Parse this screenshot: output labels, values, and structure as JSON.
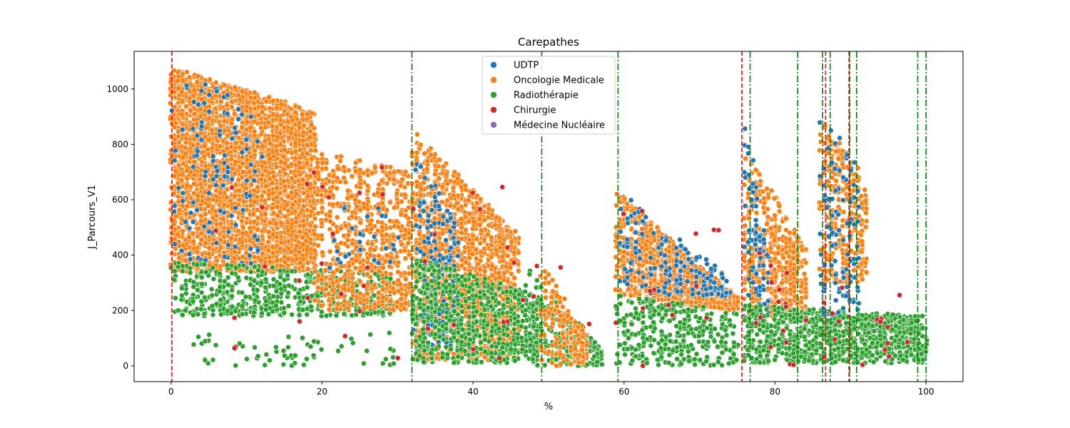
{
  "chart_data": {
    "type": "scatter",
    "title": "Carepathes",
    "xlabel": "%",
    "ylabel": "J_Parcours_V1",
    "xlim": [
      -4.9,
      104.9
    ],
    "ylim": [
      -57,
      1136
    ],
    "xticks": [
      0,
      20,
      40,
      60,
      80,
      100
    ],
    "yticks": [
      0,
      200,
      400,
      600,
      800,
      1000
    ],
    "grid": false,
    "legend_position": "top-center",
    "series": [
      {
        "name": "UDTP",
        "color": "#1f77b4"
      },
      {
        "name": "Oncologie Medicale",
        "color": "#ff7f0e"
      },
      {
        "name": "Radiothérapie",
        "color": "#2ca02c"
      },
      {
        "name": "Chirurgie",
        "color": "#d62728"
      },
      {
        "name": "Médecine Nucléaire",
        "color": "#9467bd"
      }
    ],
    "vlines_red_dashed": [
      0.1,
      75.6,
      86.7,
      89.8
    ],
    "vlines_green_dashdot": [
      31.9,
      49.1,
      59.2,
      76.7,
      83.0,
      86.3,
      87.3,
      89.9,
      90.8,
      98.9,
      100.0
    ],
    "clusters": [
      {
        "series": "Oncologie Medicale",
        "x": [
          0,
          19
        ],
        "y_top": [
          1080,
          920
        ],
        "y_bot": [
          340,
          340
        ],
        "n": 3600
      },
      {
        "series": "UDTP",
        "x": [
          0,
          12
        ],
        "y_top": [
          1060,
          960
        ],
        "y_bot": [
          360,
          360
        ],
        "n": 120
      },
      {
        "series": "Radiothérapie",
        "x": [
          0,
          30
        ],
        "y_top": [
          380,
          330
        ],
        "y_bot": [
          180,
          180
        ],
        "n": 550
      },
      {
        "series": "Radiothérapie",
        "x": [
          3,
          30
        ],
        "y_top": [
          120,
          120
        ],
        "y_bot": [
          0,
          0
        ],
        "n": 60
      },
      {
        "series": "Oncologie Medicale",
        "x": [
          19,
          32
        ],
        "y_top": [
          780,
          700
        ],
        "y_bot": [
          200,
          200
        ],
        "n": 700
      },
      {
        "series": "UDTP",
        "x": [
          20,
          31
        ],
        "y_top": [
          620,
          560
        ],
        "y_bot": [
          350,
          350
        ],
        "n": 30
      },
      {
        "series": "Oncologie Medicale",
        "x": [
          32,
          46
        ],
        "y_top": [
          850,
          470
        ],
        "y_bot": [
          20,
          20
        ],
        "n": 1500
      },
      {
        "series": "UDTP",
        "x": [
          32,
          38
        ],
        "y_top": [
          790,
          500
        ],
        "y_bot": [
          60,
          60
        ],
        "n": 160
      },
      {
        "series": "Radiothérapie",
        "x": [
          32,
          49
        ],
        "y_top": [
          400,
          250
        ],
        "y_bot": [
          10,
          10
        ],
        "n": 650
      },
      {
        "series": "Radiothérapie",
        "x": [
          47,
          57
        ],
        "y_top": [
          360,
          60
        ],
        "y_bot": [
          0,
          0
        ],
        "n": 240
      },
      {
        "series": "Oncologie Medicale",
        "x": [
          49,
          55
        ],
        "y_top": [
          370,
          120
        ],
        "y_bot": [
          0,
          0
        ],
        "n": 160
      },
      {
        "series": "Oncologie Medicale",
        "x": [
          59,
          75
        ],
        "y_top": [
          630,
          250
        ],
        "y_bot": [
          250,
          200
        ],
        "n": 1000
      },
      {
        "series": "UDTP",
        "x": [
          59,
          74
        ],
        "y_top": [
          640,
          320
        ],
        "y_bot": [
          260,
          250
        ],
        "n": 160
      },
      {
        "series": "Radiothérapie",
        "x": [
          59,
          75
        ],
        "y_top": [
          260,
          200
        ],
        "y_bot": [
          0,
          0
        ],
        "n": 330
      },
      {
        "series": "Oncologie Medicale",
        "x": [
          76,
          84
        ],
        "y_top": [
          790,
          420
        ],
        "y_bot": [
          180,
          180
        ],
        "n": 450
      },
      {
        "series": "UDTP",
        "x": [
          76,
          79
        ],
        "y_top": [
          900,
          380
        ],
        "y_bot": [
          150,
          150
        ],
        "n": 80
      },
      {
        "series": "Radiothérapie",
        "x": [
          76,
          100
        ],
        "y_top": [
          220,
          180
        ],
        "y_bot": [
          10,
          10
        ],
        "n": 900
      },
      {
        "series": "Oncologie Medicale",
        "x": [
          86,
          92
        ],
        "y_top": [
          890,
          680
        ],
        "y_bot": [
          300,
          300
        ],
        "n": 300
      },
      {
        "series": "UDTP",
        "x": [
          86,
          91
        ],
        "y_top": [
          950,
          720
        ],
        "y_bot": [
          180,
          180
        ],
        "n": 110
      },
      {
        "series": "Chirurgie",
        "x": [
          0,
          100
        ],
        "y_top": [
          1000,
          300
        ],
        "y_bot": [
          0,
          0
        ],
        "n": 90
      }
    ]
  }
}
